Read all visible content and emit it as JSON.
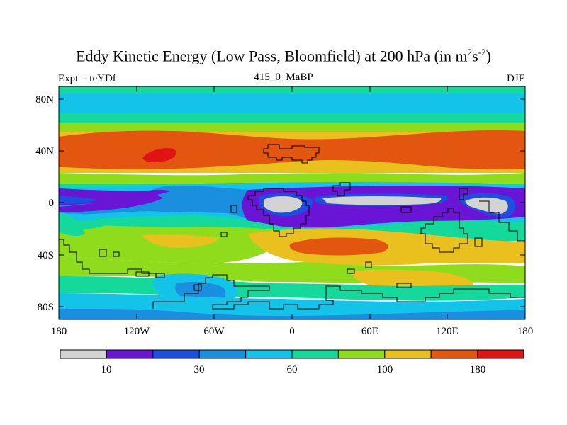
{
  "title": {
    "main": "Eddy Kinetic Energy (Low Pass, Bloomfield) at 200 hPa (in m",
    "sup1": "2",
    "mid": "s",
    "sup2": "-2",
    "end": ")"
  },
  "left_label": "Expt = teYDf",
  "center_label": "415_0_MaBP",
  "right_label": "DJF",
  "lat_labels": [
    "80N",
    "40N",
    "0",
    "40S",
    "80S"
  ],
  "lon_labels": [
    "180",
    "120W",
    "60W",
    "0",
    "60E",
    "120E",
    "180"
  ],
  "colorbar": {
    "colors": [
      "#d3d3d3",
      "#6a14d6",
      "#1c4fe0",
      "#1a8fe0",
      "#14c3e8",
      "#14d99a",
      "#8fdc1c",
      "#e9c01e",
      "#e2560f",
      "#e01414"
    ],
    "labels": [
      "10",
      "30",
      "60",
      "100",
      "180"
    ]
  },
  "palette": {
    "gray": "#d3d3d3",
    "purple": "#6a14d6",
    "blue": "#1c4fe0",
    "mid_blue": "#1a8fe0",
    "cyan": "#14c3e8",
    "teal": "#14d99a",
    "green": "#8fdc1c",
    "yellow": "#e9c01e",
    "orange": "#e2560f",
    "red": "#e01414"
  }
}
